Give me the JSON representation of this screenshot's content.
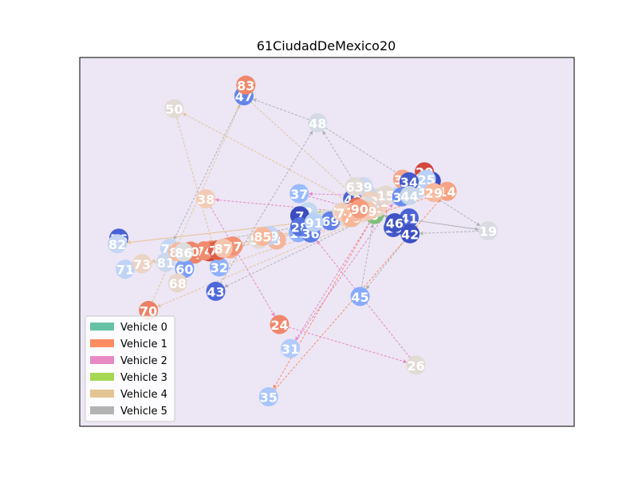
{
  "chart_data": {
    "type": "scatter",
    "title": "61CiudadDeMexico20",
    "xlabel": "",
    "ylabel": "",
    "xlim": [
      0,
      100
    ],
    "ylim": [
      0,
      100
    ],
    "grid": false,
    "legend_position": "lower-left",
    "plot_background": "#ece6f5",
    "depot": "0",
    "vehicles": [
      {
        "name": "Vehicle 0",
        "color": "#66c2a5"
      },
      {
        "name": "Vehicle 1",
        "color": "#fc8d62"
      },
      {
        "name": "Vehicle 2",
        "color": "#e78ac3"
      },
      {
        "name": "Vehicle 3",
        "color": "#a6d854"
      },
      {
        "name": "Vehicle 4",
        "color": "#e5c494"
      },
      {
        "name": "Vehicle 5",
        "color": "#b3b3b3"
      }
    ],
    "nodes": [
      {
        "id": "0",
        "x": 59.6,
        "y": 57.4,
        "color": "#7fbf7b"
      },
      {
        "id": "1",
        "x": 60.1,
        "y": 59.3,
        "color": "#e9d5c8"
      },
      {
        "id": "2",
        "x": 46.2,
        "y": 58.2,
        "color": "#c6d8f0"
      },
      {
        "id": "3",
        "x": 60.3,
        "y": 62.1,
        "color": "#e1dad3"
      },
      {
        "id": "4",
        "x": 57.7,
        "y": 61.9,
        "color": "#f0cdbb"
      },
      {
        "id": "5",
        "x": 58.0,
        "y": 63.0,
        "color": "#c8d6ea"
      },
      {
        "id": "6",
        "x": 71.1,
        "y": 66.5,
        "color": "#3b4cc0"
      },
      {
        "id": "7",
        "x": 44.5,
        "y": 57.1,
        "color": "#3b4cc0"
      },
      {
        "id": "8",
        "x": 39.8,
        "y": 50.5,
        "color": "#f4b59a"
      },
      {
        "id": "9",
        "x": 58.5,
        "y": 60.1,
        "color": "#e6d8cd"
      },
      {
        "id": "10",
        "x": 63.4,
        "y": 53.9,
        "color": "#4358cb"
      },
      {
        "id": "11",
        "x": 60.7,
        "y": 60.9,
        "color": "#f0cdbb"
      },
      {
        "id": "12",
        "x": 58.9,
        "y": 60.7,
        "color": "#c5d6f2"
      },
      {
        "id": "13",
        "x": 64.4,
        "y": 62.4,
        "color": "#c5d6f2"
      },
      {
        "id": "14",
        "x": 74.3,
        "y": 63.7,
        "color": "#f6a283"
      },
      {
        "id": "15",
        "x": 61.9,
        "y": 62.7,
        "color": "#e4d9d2"
      },
      {
        "id": "16",
        "x": 44.2,
        "y": 52.5,
        "color": "#8db0fe"
      },
      {
        "id": "17",
        "x": 57.1,
        "y": 57.9,
        "color": "#ead5c9"
      },
      {
        "id": "18",
        "x": 57.8,
        "y": 60.8,
        "color": "#e8d6cc"
      },
      {
        "id": "19",
        "x": 82.6,
        "y": 53.0,
        "color": "#d9dce1"
      },
      {
        "id": "20",
        "x": 69.7,
        "y": 69.0,
        "color": "#d1493f"
      },
      {
        "id": "21",
        "x": 54.5,
        "y": 56.6,
        "color": "#f3c7b1"
      },
      {
        "id": "22",
        "x": 49.9,
        "y": 56.1,
        "color": "#dddcdc"
      },
      {
        "id": "23",
        "x": 68.2,
        "y": 64.2,
        "color": "#cdd9ec"
      },
      {
        "id": "24",
        "x": 40.4,
        "y": 27.6,
        "color": "#ef886b"
      },
      {
        "id": "25",
        "x": 70.1,
        "y": 67.0,
        "color": "#b9d0f9"
      },
      {
        "id": "26",
        "x": 68.0,
        "y": 16.6,
        "color": "#e2dad5"
      },
      {
        "id": "27",
        "x": 53.0,
        "y": 57.7,
        "color": "#f7ac8e"
      },
      {
        "id": "28",
        "x": 44.5,
        "y": 54.1,
        "color": "#5572df"
      },
      {
        "id": "29",
        "x": 71.6,
        "y": 63.4,
        "color": "#f7b89c"
      },
      {
        "id": "30",
        "x": 65.3,
        "y": 67.0,
        "color": "#f7a688"
      },
      {
        "id": "31",
        "x": 42.6,
        "y": 21.1,
        "color": "#b1cbfc"
      },
      {
        "id": "32",
        "x": 28.2,
        "y": 43.2,
        "color": "#8fb1fe"
      },
      {
        "id": "33",
        "x": 26.7,
        "y": 47.8,
        "color": "#f18d6f"
      },
      {
        "id": "34",
        "x": 66.6,
        "y": 66.3,
        "color": "#445acc"
      },
      {
        "id": "35",
        "x": 38.2,
        "y": 8.0,
        "color": "#a9c6fd"
      },
      {
        "id": "36",
        "x": 46.7,
        "y": 52.4,
        "color": "#5e7de7"
      },
      {
        "id": "37",
        "x": 44.4,
        "y": 63.1,
        "color": "#9abbff"
      },
      {
        "id": "38",
        "x": 25.5,
        "y": 61.7,
        "color": "#f2cbb7"
      },
      {
        "id": "39",
        "x": 65.1,
        "y": 62.2,
        "color": "#6b8df0"
      },
      {
        "id": "40",
        "x": 55.2,
        "y": 61.6,
        "color": "#4a63d3"
      },
      {
        "id": "41",
        "x": 66.6,
        "y": 56.5,
        "color": "#4b64d5"
      },
      {
        "id": "42",
        "x": 66.8,
        "y": 52.2,
        "color": "#3d50c3"
      },
      {
        "id": "43",
        "x": 27.5,
        "y": 36.6,
        "color": "#4e68d8"
      },
      {
        "id": "44",
        "x": 66.7,
        "y": 62.6,
        "color": "#c8d6ea"
      },
      {
        "id": "45",
        "x": 56.7,
        "y": 35.2,
        "color": "#88abfd"
      },
      {
        "id": "46",
        "x": 63.7,
        "y": 55.2,
        "color": "#3f53c6"
      },
      {
        "id": "47",
        "x": 33.2,
        "y": 89.6,
        "color": "#6384eb"
      },
      {
        "id": "48",
        "x": 48.1,
        "y": 82.3,
        "color": "#d4dbe6"
      },
      {
        "id": "49",
        "x": 57.4,
        "y": 65.0,
        "color": "#cdd9ec"
      },
      {
        "id": "50",
        "x": 19.1,
        "y": 86.1,
        "color": "#e2dad5"
      },
      {
        "id": "51",
        "x": 36.2,
        "y": 50.7,
        "color": "#e3d9d3"
      },
      {
        "id": "52",
        "x": 54.0,
        "y": 57.4,
        "color": "#f7b194"
      },
      {
        "id": "53",
        "x": 52.5,
        "y": 57.3,
        "color": "#dcdddd"
      },
      {
        "id": "54",
        "x": 55.9,
        "y": 58.8,
        "color": "#f5c1a9"
      },
      {
        "id": "55",
        "x": 23.2,
        "y": 46.7,
        "color": "#ee8468"
      },
      {
        "id": "56",
        "x": 7.9,
        "y": 51.0,
        "color": "#4961d2"
      },
      {
        "id": "57",
        "x": 29.9,
        "y": 48.6,
        "color": "#f59f80"
      },
      {
        "id": "58",
        "x": 56.1,
        "y": 59.5,
        "color": "#e46e56"
      },
      {
        "id": "59",
        "x": 38.4,
        "y": 51.7,
        "color": "#c0d4f5"
      },
      {
        "id": "60",
        "x": 21.2,
        "y": 42.8,
        "color": "#7b9ff9"
      },
      {
        "id": "61",
        "x": 26.2,
        "y": 47.3,
        "color": "#d0473d"
      },
      {
        "id": "62",
        "x": 58.6,
        "y": 61.1,
        "color": "#efcfbf"
      },
      {
        "id": "63",
        "x": 55.6,
        "y": 65.0,
        "color": "#e2dad5"
      },
      {
        "id": "64",
        "x": 30.4,
        "y": 48.1,
        "color": "#f7a889"
      },
      {
        "id": "65",
        "x": 28.0,
        "y": 47.6,
        "color": "#e97a5f"
      },
      {
        "id": "66",
        "x": 18.7,
        "y": 47.3,
        "color": "#f39475"
      },
      {
        "id": "67",
        "x": 31.0,
        "y": 48.9,
        "color": "#f29274"
      },
      {
        "id": "68",
        "x": 19.8,
        "y": 38.9,
        "color": "#e8d6cc"
      },
      {
        "id": "69",
        "x": 50.7,
        "y": 55.7,
        "color": "#6282ea"
      },
      {
        "id": "70",
        "x": 13.9,
        "y": 31.4,
        "color": "#ec8165"
      },
      {
        "id": "71",
        "x": 9.2,
        "y": 42.6,
        "color": "#bfd3f6"
      },
      {
        "id": "72",
        "x": 53.0,
        "y": 58.1,
        "color": "#ebd3c6"
      },
      {
        "id": "73",
        "x": 12.6,
        "y": 44.1,
        "color": "#ecd3c5"
      },
      {
        "id": "74",
        "x": 25.2,
        "y": 47.6,
        "color": "#f08b6e"
      },
      {
        "id": "75",
        "x": 53.6,
        "y": 57.9,
        "color": "#f1ccb8"
      },
      {
        "id": "76",
        "x": 55.0,
        "y": 56.6,
        "color": "#f7b599"
      },
      {
        "id": "77",
        "x": 18.2,
        "y": 48.3,
        "color": "#c6d6f1"
      },
      {
        "id": "78",
        "x": 55.7,
        "y": 58.1,
        "color": "#f7ba9f"
      },
      {
        "id": "79",
        "x": 27.9,
        "y": 47.8,
        "color": "#dd5f4b"
      },
      {
        "id": "80",
        "x": 22.4,
        "y": 47.5,
        "color": "#ee8669"
      },
      {
        "id": "81",
        "x": 17.4,
        "y": 44.5,
        "color": "#cbd8ee"
      },
      {
        "id": "82",
        "x": 7.6,
        "y": 49.5,
        "color": "#c5d6f2"
      },
      {
        "id": "83",
        "x": 33.6,
        "y": 92.5,
        "color": "#ef886b"
      },
      {
        "id": "84",
        "x": 19.9,
        "y": 47.3,
        "color": "#f7ba9f"
      },
      {
        "id": "85",
        "x": 37.0,
        "y": 51.5,
        "color": "#f7b89c"
      },
      {
        "id": "86",
        "x": 21.0,
        "y": 47.2,
        "color": "#dcdddd"
      },
      {
        "id": "87",
        "x": 29.0,
        "y": 48.3,
        "color": "#f4c5ad"
      },
      {
        "id": "88",
        "x": 58.3,
        "y": 59.7,
        "color": "#dfdbd9"
      },
      {
        "id": "89",
        "x": 58.3,
        "y": 58.4,
        "color": "#f3c8b2"
      },
      {
        "id": "90",
        "x": 56.6,
        "y": 59.0,
        "color": "#f59c7d"
      },
      {
        "id": "91",
        "x": 47.4,
        "y": 55.3,
        "color": "#bad0f8"
      }
    ],
    "routes": [
      {
        "vehicle": "Vehicle 1",
        "edges": [
          [
            "0",
            "35"
          ],
          [
            "35",
            "14"
          ],
          [
            "14",
            "0"
          ]
        ]
      },
      {
        "vehicle": "Vehicle 2",
        "edges": [
          [
            "0",
            "38"
          ],
          [
            "38",
            "24"
          ],
          [
            "24",
            "26"
          ],
          [
            "26",
            "36"
          ],
          [
            "36",
            "0"
          ],
          [
            "0",
            "31"
          ],
          [
            "31",
            "13"
          ],
          [
            "13",
            "37"
          ],
          [
            "37",
            "0"
          ]
        ]
      },
      {
        "vehicle": "Vehicle 3",
        "edges": [
          [
            "0",
            "2"
          ],
          [
            "2",
            "0"
          ]
        ]
      },
      {
        "vehicle": "Vehicle 4",
        "edges": [
          [
            "0",
            "50"
          ],
          [
            "50",
            "32"
          ],
          [
            "32",
            "0"
          ],
          [
            "0",
            "82"
          ],
          [
            "82",
            "0"
          ],
          [
            "0",
            "73"
          ],
          [
            "73",
            "71"
          ],
          [
            "71",
            "0"
          ],
          [
            "0",
            "70"
          ],
          [
            "70",
            "47"
          ],
          [
            "47",
            "0"
          ],
          [
            "0",
            "64"
          ],
          [
            "64",
            "0"
          ]
        ]
      },
      {
        "vehicle": "Vehicle 5",
        "edges": [
          [
            "0",
            "48"
          ],
          [
            "48",
            "47"
          ],
          [
            "47",
            "77"
          ],
          [
            "77",
            "0"
          ],
          [
            "0",
            "19"
          ],
          [
            "19",
            "42"
          ],
          [
            "42",
            "45"
          ],
          [
            "45",
            "0"
          ],
          [
            "0",
            "43"
          ],
          [
            "43",
            "48"
          ],
          [
            "48",
            "19"
          ],
          [
            "19",
            "0"
          ]
        ]
      }
    ]
  }
}
